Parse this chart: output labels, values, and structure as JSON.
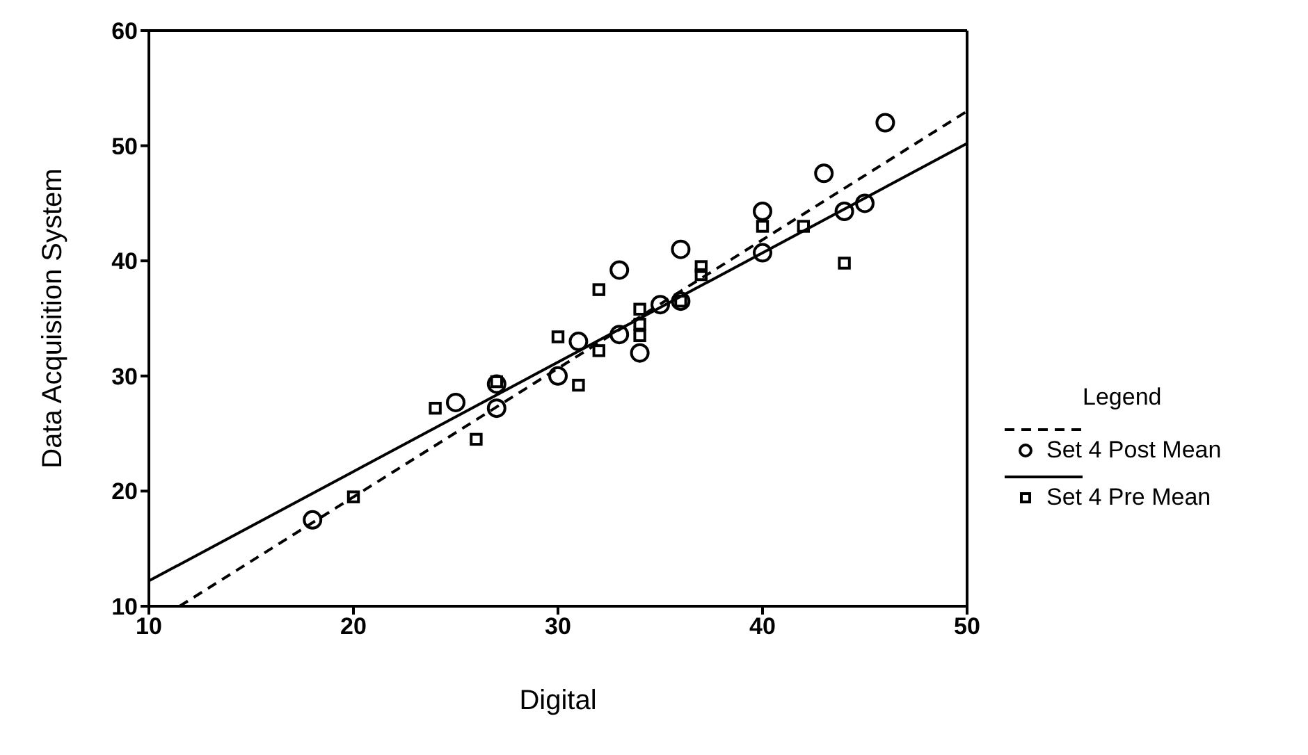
{
  "chart_data": {
    "type": "scatter",
    "xlabel": "Digital",
    "ylabel": "Data Acquisition System",
    "legend_title": "Legend",
    "legend": "right",
    "grid": false,
    "xlim": [
      10,
      50
    ],
    "xticks": [
      10,
      20,
      30,
      40,
      50
    ],
    "ylim": [
      10,
      60
    ],
    "yticks": [
      10,
      20,
      30,
      40,
      50,
      60
    ],
    "series": [
      {
        "name": "Set 4 Post Mean",
        "type": "scatter",
        "marker": "circle",
        "color": "#000000",
        "x": [
          18,
          25,
          27,
          27,
          30,
          31,
          33,
          33,
          34,
          35,
          36,
          36,
          40,
          40,
          43,
          44,
          45,
          46
        ],
        "values": [
          17.5,
          27.7,
          27.2,
          29.3,
          30,
          33,
          33.6,
          39.2,
          32,
          36.2,
          41,
          36.5,
          44.3,
          40.7,
          47.6,
          44.3,
          45,
          52
        ]
      },
      {
        "type": "line",
        "line_style": "dashed",
        "marker": "none",
        "color": "#000000",
        "x": [
          11.5,
          50
        ],
        "values": [
          10,
          53
        ]
      },
      {
        "name": "Set 4 Pre Mean",
        "type": "scatter",
        "marker": "square",
        "color": "#000000",
        "x": [
          20,
          24,
          26,
          27,
          30,
          31,
          32,
          32,
          34,
          34,
          34,
          36,
          37,
          37,
          40,
          42,
          44
        ],
        "values": [
          19.5,
          27.2,
          24.5,
          29.5,
          33.4,
          29.2,
          37.5,
          32.2,
          35.8,
          34.5,
          33.5,
          36.5,
          39.5,
          38.8,
          43,
          43,
          39.8
        ]
      },
      {
        "type": "line",
        "line_style": "solid",
        "marker": "none",
        "color": "#000000",
        "x": [
          10,
          50
        ],
        "values": [
          12.2,
          50.2
        ]
      }
    ]
  }
}
